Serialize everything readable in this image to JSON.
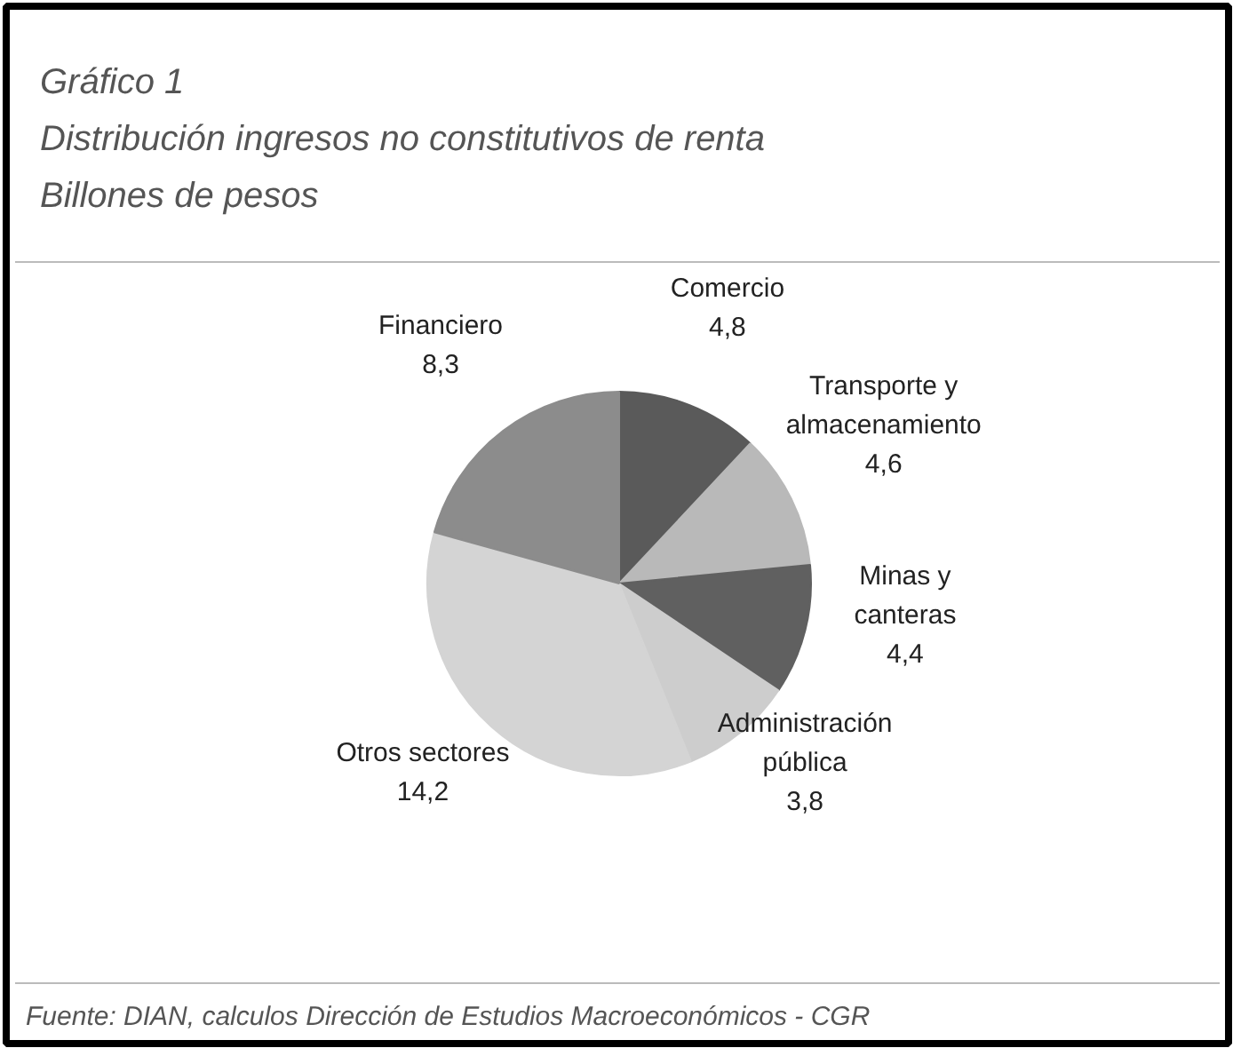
{
  "chart_data": {
    "type": "pie",
    "title": "Gráfico 1",
    "subtitle": "Distribución ingresos no constitutivos de renta",
    "annotations": [
      "Billones de pesos",
      "Fuente: DIAN, calculos Dirección de Estudios Macroeconómicos - CGR"
    ],
    "categories": [
      "Comercio",
      "Transporte y almacenamiento",
      "Minas y canteras",
      "Administración pública",
      "Otros sectores",
      "Financiero"
    ],
    "values": [
      4.8,
      4.6,
      4.4,
      3.8,
      14.2,
      8.3
    ],
    "value_labels": [
      "4,8",
      "4,6",
      "4,4",
      "3,8",
      "14,2",
      "8,3"
    ],
    "colors": [
      "#5a5a5a",
      "#b9b9b9",
      "#606060",
      "#cdcdcd",
      "#d4d4d4",
      "#8c8c8c"
    ]
  }
}
